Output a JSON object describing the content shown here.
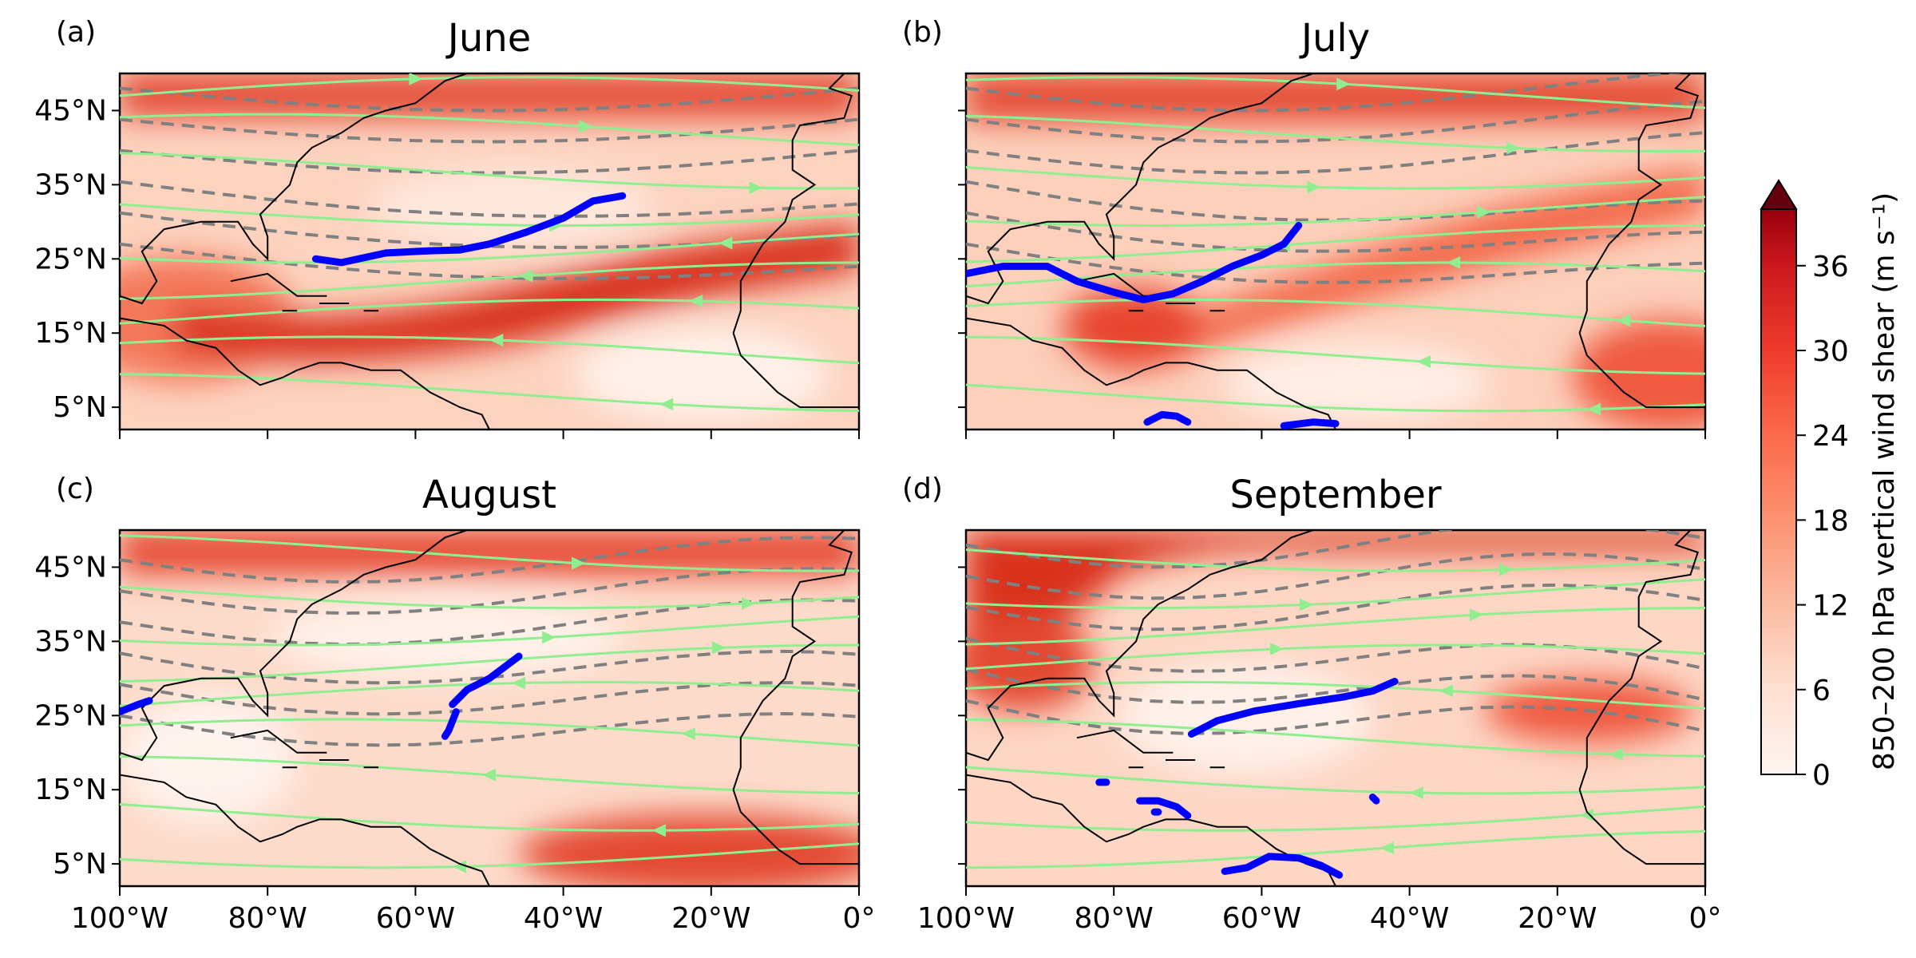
{
  "chart_data": {
    "type": "heatmap",
    "panels": [
      {
        "label": "(a)",
        "title": "June",
        "ridge_segments": [
          [
            [
              -73.5,
              25.0
            ],
            [
              -70,
              24.5
            ],
            [
              -64,
              25.8
            ],
            [
              -58,
              26.1
            ],
            [
              -54,
              26.2
            ],
            [
              -50,
              27.0
            ],
            [
              -45,
              28.6
            ],
            [
              -40,
              30.5
            ],
            [
              -36,
              32.8
            ],
            [
              -32,
              33.5
            ]
          ]
        ]
      },
      {
        "label": "(b)",
        "title": "July",
        "ridge_segments": [
          [
            [
              -100,
              23.0
            ],
            [
              -95,
              24.0
            ],
            [
              -89,
              24.0
            ],
            [
              -85,
              22.0
            ],
            [
              -80,
              20.5
            ],
            [
              -76,
              19.5
            ],
            [
              -72,
              20.3
            ],
            [
              -68,
              22.0
            ],
            [
              -64,
              24.0
            ],
            [
              -60,
              25.5
            ],
            [
              -57,
              27.0
            ],
            [
              -55,
              29.5
            ]
          ],
          [
            [
              -75.5,
              3.0
            ],
            [
              -73.5,
              4.0
            ],
            [
              -71.5,
              3.8
            ],
            [
              -70,
              3.0
            ]
          ],
          [
            [
              -57,
              2.5
            ],
            [
              -53,
              3.0
            ],
            [
              -50,
              2.8
            ]
          ]
        ]
      },
      {
        "label": "(c)",
        "title": "August",
        "ridge_segments": [
          [
            [
              -100,
              25.5
            ],
            [
              -97.5,
              26.5
            ],
            [
              -96,
              27.0
            ]
          ],
          [
            [
              -55,
              26.5
            ],
            [
              -53,
              28.5
            ],
            [
              -50,
              30.0
            ],
            [
              -48,
              31.5
            ],
            [
              -46,
              33.0
            ]
          ],
          [
            [
              -54.5,
              25.5
            ],
            [
              -55.5,
              23.0
            ],
            [
              -56,
              22.2
            ]
          ]
        ]
      },
      {
        "label": "(d)",
        "title": "September",
        "ridge_segments": [
          [
            [
              -69.5,
              22.5
            ],
            [
              -66,
              24.3
            ],
            [
              -61,
              25.6
            ],
            [
              -55,
              26.6
            ],
            [
              -49,
              27.5
            ],
            [
              -45,
              28.3
            ],
            [
              -42,
              29.6
            ]
          ],
          [
            [
              -76.5,
              13.5
            ],
            [
              -74,
              13.5
            ],
            [
              -71.5,
              12.7
            ],
            [
              -70,
              11.5
            ]
          ],
          [
            [
              -65,
              4.0
            ],
            [
              -62,
              4.5
            ],
            [
              -59,
              6.0
            ],
            [
              -55,
              5.8
            ],
            [
              -52,
              4.8
            ],
            [
              -49.5,
              3.5
            ]
          ],
          [
            [
              -82,
              16.0
            ],
            [
              -81,
              16.0
            ]
          ],
          [
            [
              -74.5,
              12.0
            ],
            [
              -74,
              12.0
            ]
          ],
          [
            [
              -45,
              14.0
            ],
            [
              -44.5,
              13.5
            ]
          ]
        ]
      }
    ],
    "x_axis": {
      "range": [
        -100,
        0
      ],
      "ticks": [
        "100°W",
        "80°W",
        "60°W",
        "40°W",
        "20°W",
        "0°"
      ],
      "tick_values": [
        -100,
        -80,
        -60,
        -40,
        -20,
        0
      ]
    },
    "y_axis": {
      "range": [
        2,
        50
      ],
      "ticks": [
        "45°N",
        "35°N",
        "25°N",
        "15°N",
        "5°N"
      ],
      "tick_values": [
        45,
        35,
        25,
        15,
        5
      ]
    },
    "colorbar": {
      "label": "850–200 hPa vertical wind shear (m s⁻¹)",
      "ticks": [
        "0",
        "6",
        "12",
        "18",
        "24",
        "30",
        "36"
      ],
      "tick_values": [
        0,
        6,
        12,
        18,
        24,
        30,
        36
      ],
      "range": [
        0,
        40
      ],
      "extend": "max",
      "colormap": [
        "#fff5f0",
        "#fee4d8",
        "#fdd0bc",
        "#fcbba1",
        "#fca486",
        "#fc8e6e",
        "#fb7858",
        "#f6583e",
        "#ed392b",
        "#d92523",
        "#c3161b",
        "#ad1017",
        "#95060f",
        "#75000d",
        "#67000d"
      ]
    },
    "overlays": {
      "ridge_color": "#0000ff",
      "streamline_color": "#90ee90",
      "contour_color": "#808080",
      "coastline_color": "#000000"
    }
  }
}
